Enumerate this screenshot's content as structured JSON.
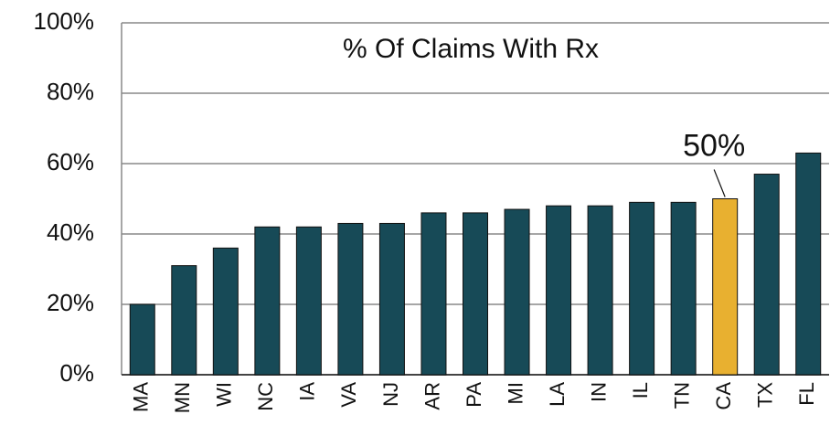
{
  "chart_data": {
    "type": "bar",
    "title": "% Of Claims With Rx",
    "categories": [
      "MA",
      "MN",
      "WI",
      "NC",
      "IA",
      "VA",
      "NJ",
      "AR",
      "PA",
      "MI",
      "LA",
      "IN",
      "IL",
      "TN",
      "CA",
      "TX",
      "FL"
    ],
    "values": [
      20,
      31,
      36,
      42,
      42,
      43,
      43,
      46,
      46,
      47,
      48,
      48,
      49,
      49,
      50,
      57,
      63
    ],
    "value_labels": [
      null,
      null,
      null,
      null,
      null,
      null,
      null,
      null,
      null,
      null,
      null,
      null,
      null,
      null,
      "50%",
      null,
      null
    ],
    "colors": [
      "#174a57",
      "#174a57",
      "#174a57",
      "#174a57",
      "#174a57",
      "#174a57",
      "#174a57",
      "#174a57",
      "#174a57",
      "#174a57",
      "#174a57",
      "#174a57",
      "#174a57",
      "#174a57",
      "#e8b030",
      "#174a57",
      "#174a57"
    ],
    "ylim": [
      0,
      100
    ],
    "yticks": [
      {
        "value": 0,
        "label": "0%"
      },
      {
        "value": 20,
        "label": "20%"
      },
      {
        "value": 40,
        "label": "40%"
      },
      {
        "value": 60,
        "label": "60%"
      },
      {
        "value": 80,
        "label": "80%"
      },
      {
        "value": 100,
        "label": "100%"
      }
    ],
    "grid": true
  }
}
